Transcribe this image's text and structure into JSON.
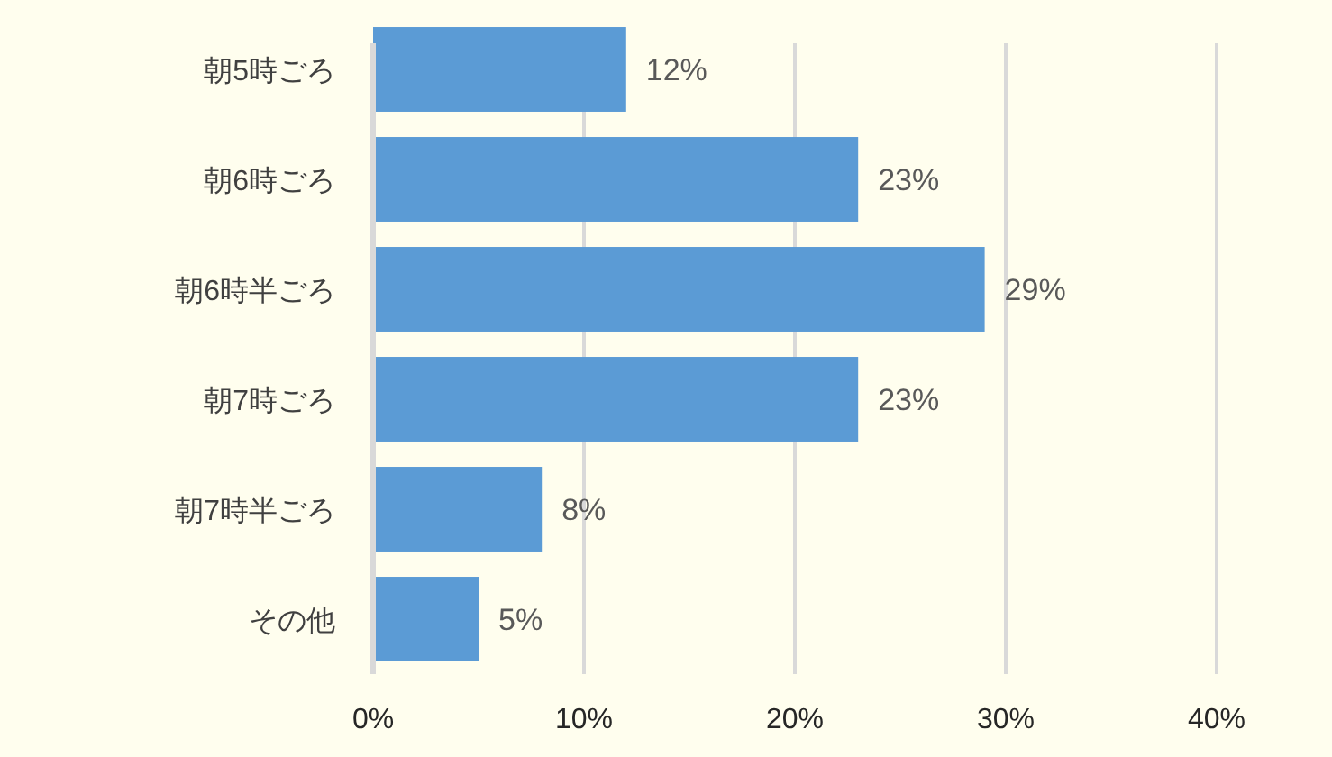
{
  "chart_data": {
    "type": "bar",
    "orientation": "horizontal",
    "categories": [
      "朝5時ごろ",
      "朝6時ごろ",
      "朝6時半ごろ",
      "朝7時ごろ",
      "朝7時半ごろ",
      "その他"
    ],
    "values": [
      12,
      23,
      29,
      23,
      8,
      5
    ],
    "value_labels": [
      "12%",
      "23%",
      "29%",
      "23%",
      "8%",
      "5%"
    ],
    "color": "#5b9bd5",
    "xlim": [
      0,
      40
    ],
    "xticks": [
      {
        "value": 0,
        "label": "0%"
      },
      {
        "value": 10,
        "label": "10%"
      },
      {
        "value": 20,
        "label": "20%"
      },
      {
        "value": 30,
        "label": "30%"
      },
      {
        "value": 40,
        "label": "40%"
      }
    ],
    "grid": "x"
  }
}
